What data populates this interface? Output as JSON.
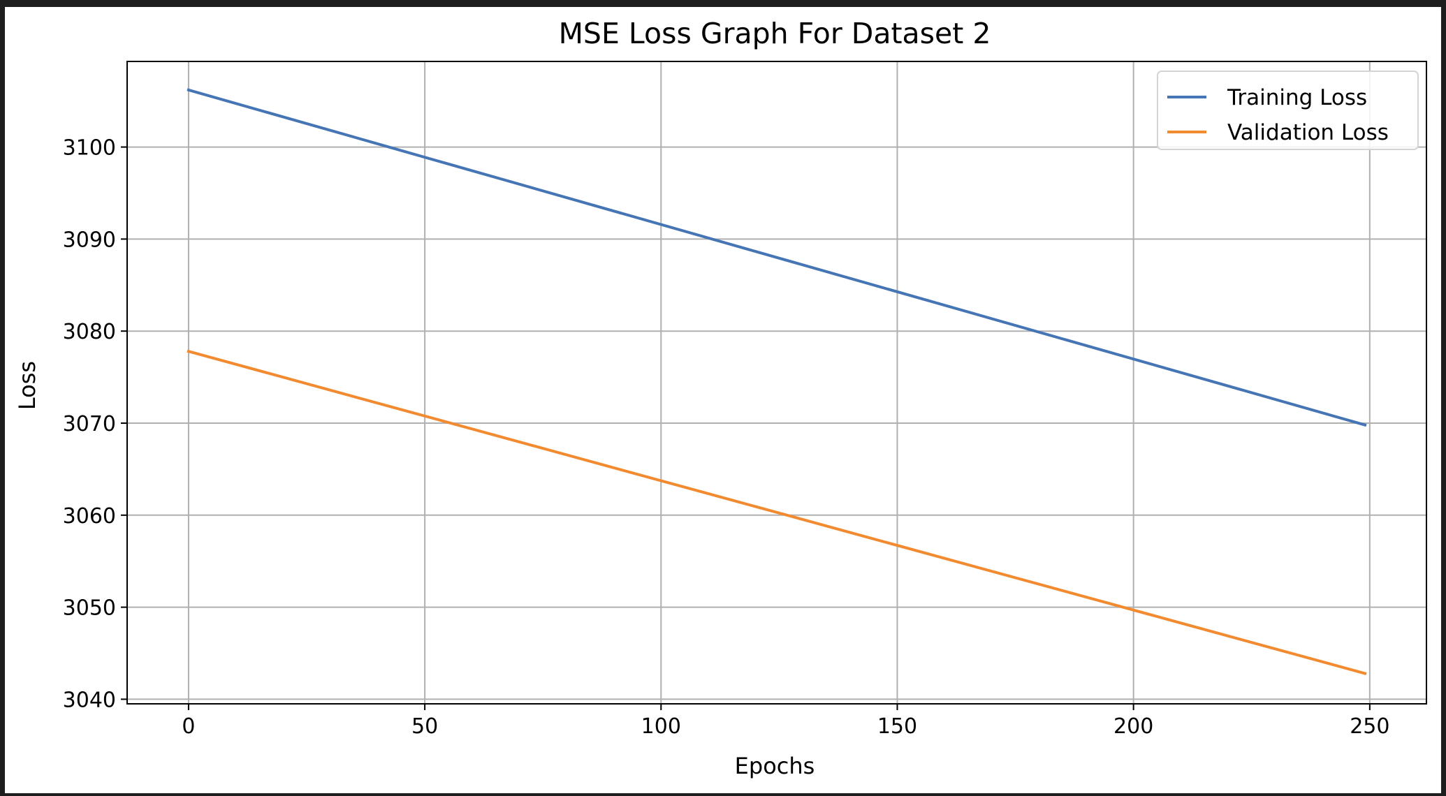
{
  "chart_data": {
    "type": "line",
    "title": "MSE Loss Graph For Dataset 2",
    "xlabel": "Epochs",
    "ylabel": "Loss",
    "xlim": [
      -13,
      262
    ],
    "ylim": [
      3039.5,
      3109.3
    ],
    "xticks": [
      0,
      50,
      100,
      150,
      200,
      250
    ],
    "yticks": [
      3040,
      3050,
      3060,
      3070,
      3080,
      3090,
      3100
    ],
    "grid": true,
    "legend_position": "top-right",
    "series": [
      {
        "name": "Training Loss",
        "color": "#4575b4",
        "x": [
          0,
          249
        ],
        "y": [
          3106.2,
          3069.8
        ]
      },
      {
        "name": "Validation Loss",
        "color": "#f28a30",
        "x": [
          0,
          249
        ],
        "y": [
          3077.8,
          3042.8
        ]
      }
    ]
  }
}
